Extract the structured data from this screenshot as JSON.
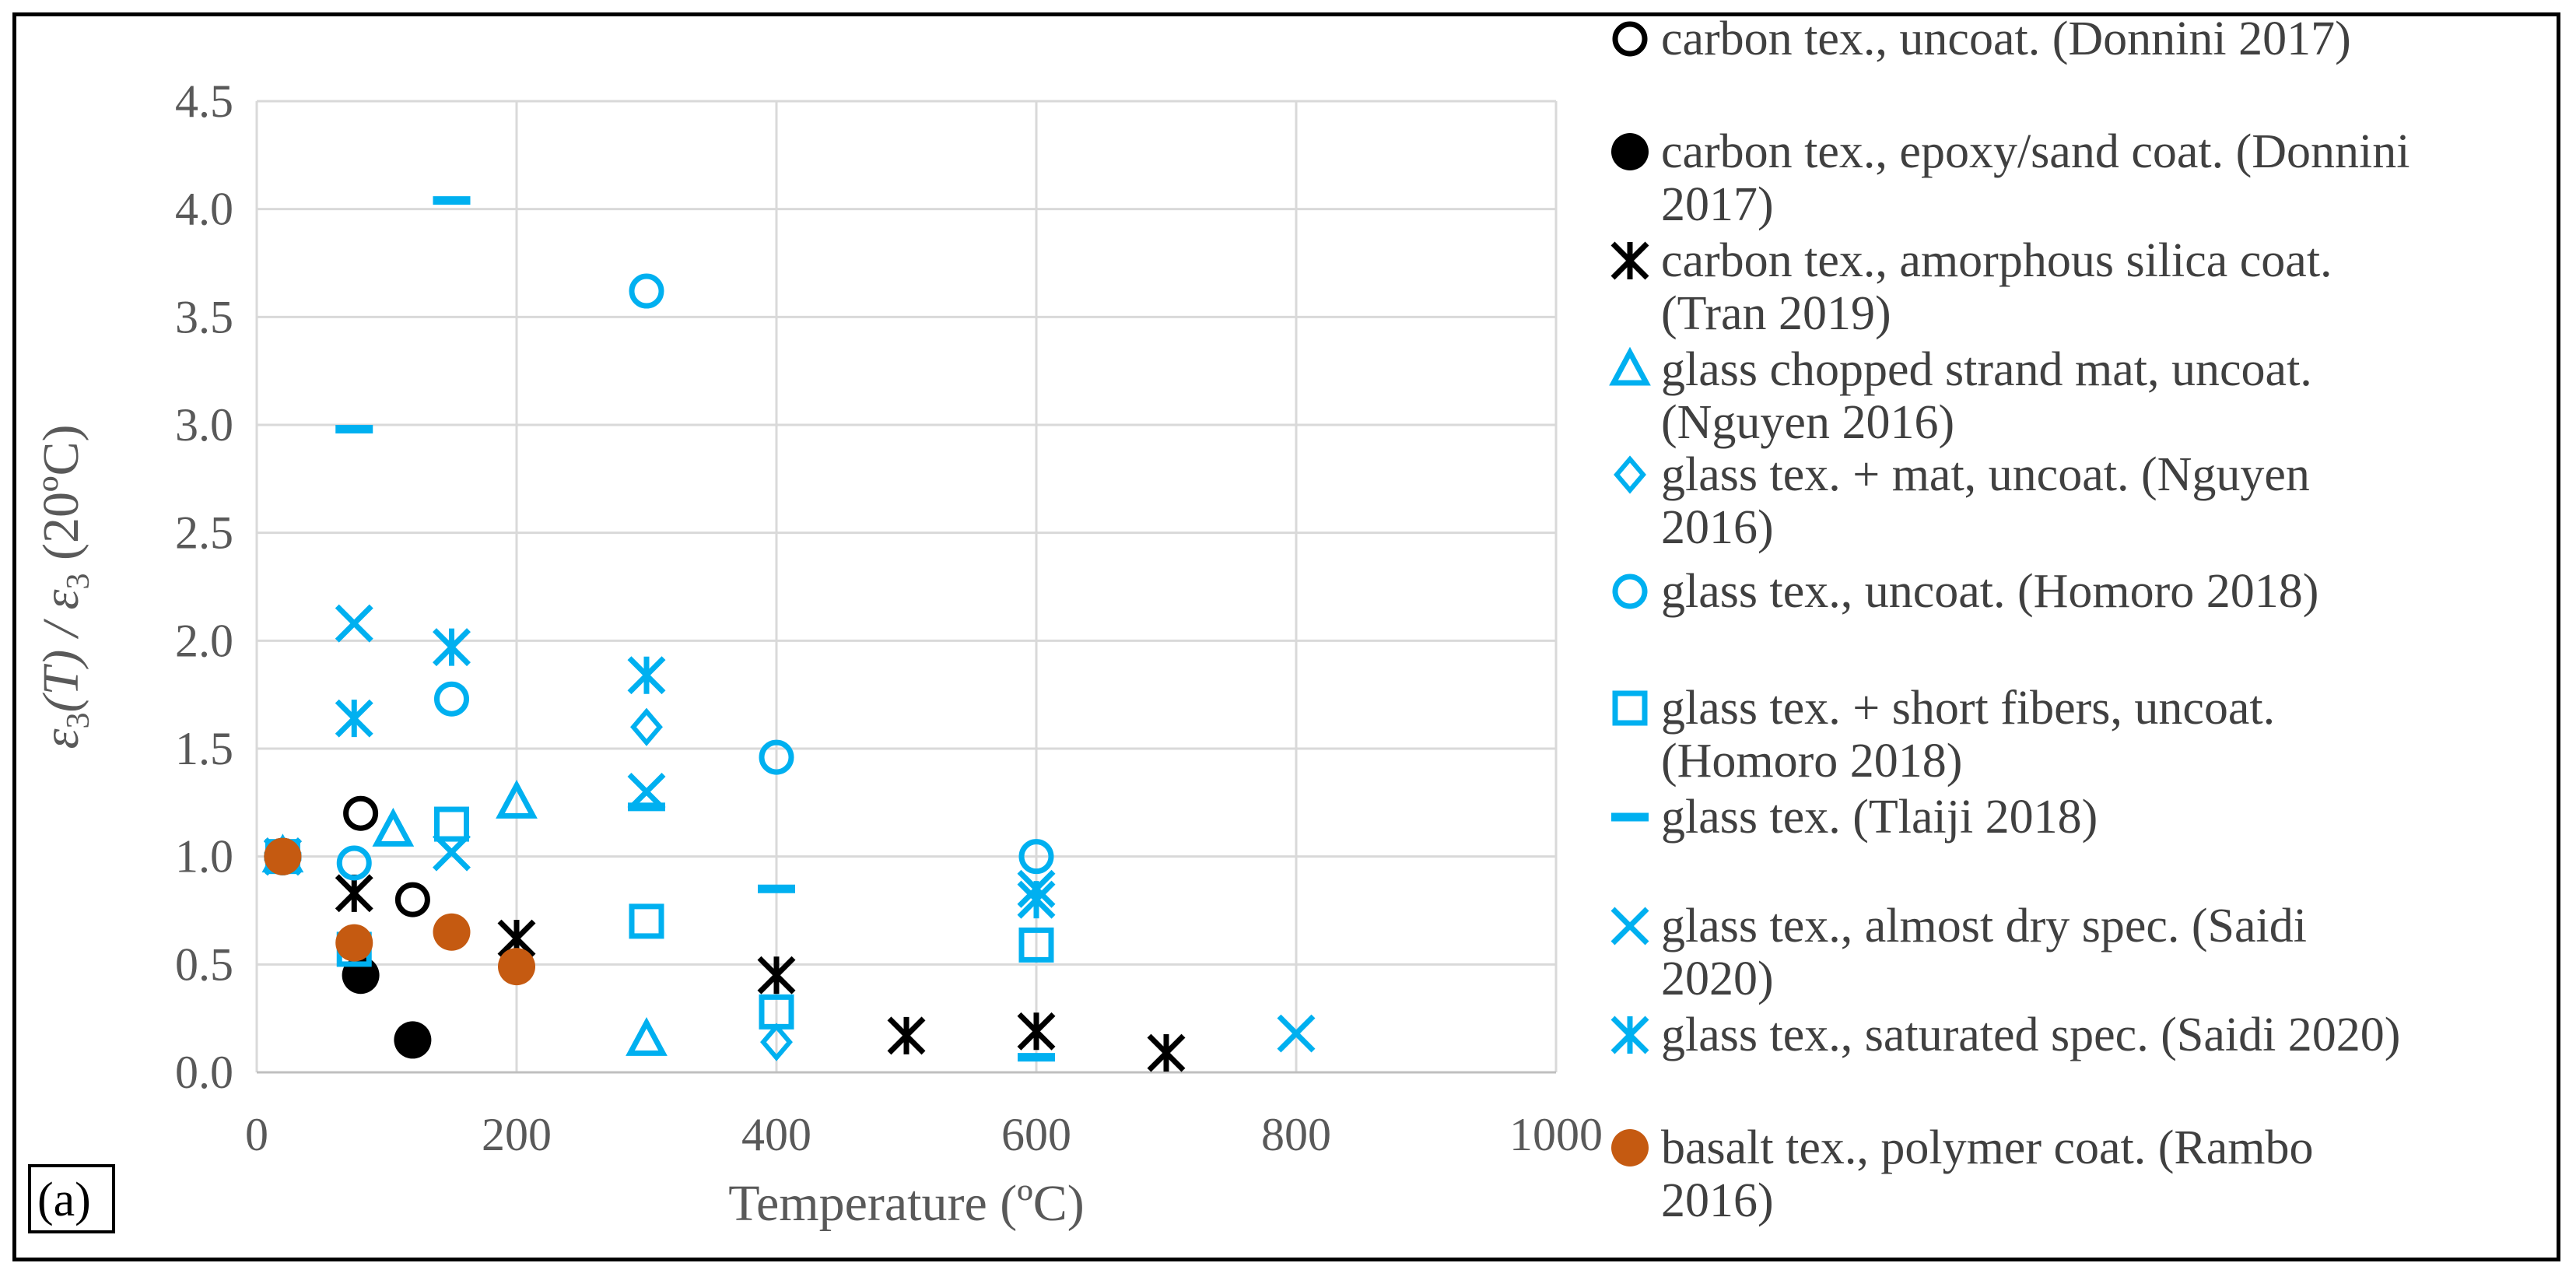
{
  "chart_data": {
    "type": "scatter",
    "panel_label": "(a)",
    "xlabel": "Temperature (ºC)",
    "ylabel_parts": [
      "ε",
      "3",
      "(T) / ",
      "ε",
      "3",
      " (20ºC)"
    ],
    "xlim": [
      0,
      1000
    ],
    "ylim": [
      0,
      4.5
    ],
    "x_ticks": [
      "0",
      "200",
      "400",
      "600",
      "800",
      "1000"
    ],
    "y_ticks": [
      "0.0",
      "0.5",
      "1.0",
      "1.5",
      "2.0",
      "2.5",
      "3.0",
      "3.5",
      "4.0",
      "4.5"
    ],
    "grid": true,
    "legend_position": "right",
    "colors": {
      "black": "#000000",
      "blue": "#00B0F0",
      "brown": "#C55A11",
      "grid": "#D9D9D9",
      "axis": "#BFBFBF"
    },
    "series": [
      {
        "name": "carbon tex., uncoat. (Donnini 2017)",
        "legend_lines": [
          "carbon tex., uncoat. (Donnini 2017)"
        ],
        "marker": "circle-open",
        "color": "#000000",
        "points": [
          [
            20,
            1.0
          ],
          [
            80,
            1.2
          ],
          [
            120,
            0.8
          ]
        ]
      },
      {
        "name": "carbon tex., epoxy/sand coat. (Donnini 2017)",
        "legend_lines": [
          "carbon tex., epoxy/sand coat. (Donnini",
          "2017)"
        ],
        "marker": "circle-filled",
        "color": "#000000",
        "points": [
          [
            20,
            1.0
          ],
          [
            80,
            0.45
          ],
          [
            120,
            0.15
          ]
        ]
      },
      {
        "name": "carbon tex., amorphous silica coat. (Tran 2019)",
        "legend_lines": [
          "carbon tex., amorphous silica coat.",
          "(Tran 2019)"
        ],
        "marker": "star",
        "color": "#000000",
        "points": [
          [
            20,
            1.0
          ],
          [
            75,
            0.83
          ],
          [
            200,
            0.62
          ],
          [
            400,
            0.45
          ],
          [
            500,
            0.17
          ],
          [
            600,
            0.19
          ],
          [
            700,
            0.09
          ]
        ]
      },
      {
        "name": "glass chopped strand mat, uncoat. (Nguyen 2016)",
        "legend_lines": [
          "glass chopped strand mat, uncoat.",
          "(Nguyen 2016)"
        ],
        "marker": "triangle-open",
        "color": "#00B0F0",
        "points": [
          [
            20,
            1.0
          ],
          [
            105,
            1.12
          ],
          [
            200,
            1.25
          ],
          [
            300,
            0.15
          ]
        ]
      },
      {
        "name": "glass tex. + mat, uncoat. (Nguyen 2016)",
        "legend_lines": [
          "glass tex. + mat, uncoat. (Nguyen",
          "2016)"
        ],
        "marker": "diamond-open",
        "color": "#00B0F0",
        "points": [
          [
            20,
            1.0
          ],
          [
            300,
            1.6
          ],
          [
            400,
            0.14
          ]
        ]
      },
      {
        "name": "glass tex., uncoat. (Homoro 2018)",
        "legend_lines": [
          "glass tex., uncoat. (Homoro 2018)"
        ],
        "marker": "circle-open",
        "color": "#00B0F0",
        "points": [
          [
            20,
            1.0
          ],
          [
            75,
            0.97
          ],
          [
            150,
            1.73
          ],
          [
            300,
            3.62
          ],
          [
            400,
            1.46
          ],
          [
            600,
            1.0
          ]
        ]
      },
      {
        "name": "glass tex. + short fibers, uncoat. (Homoro 2018)",
        "legend_lines": [
          "glass tex. + short fibers, uncoat.",
          "(Homoro 2018)"
        ],
        "marker": "square-open",
        "color": "#00B0F0",
        "points": [
          [
            20,
            1.0
          ],
          [
            75,
            0.57
          ],
          [
            150,
            1.15
          ],
          [
            300,
            0.7
          ],
          [
            400,
            0.28
          ],
          [
            600,
            0.59
          ]
        ]
      },
      {
        "name": "glass tex. (Tlaiji 2018)",
        "legend_lines": [
          "glass tex. (Tlaiji 2018)"
        ],
        "marker": "dash",
        "color": "#00B0F0",
        "points": [
          [
            20,
            1.0
          ],
          [
            75,
            2.98
          ],
          [
            150,
            4.04
          ],
          [
            300,
            1.23
          ],
          [
            400,
            0.85
          ],
          [
            600,
            0.07
          ]
        ]
      },
      {
        "name": "glass tex., almost dry spec. (Saidi 2020)",
        "legend_lines": [
          "glass tex., almost dry spec. (Saidi",
          "2020)"
        ],
        "marker": "x",
        "color": "#00B0F0",
        "points": [
          [
            20,
            1.0
          ],
          [
            75,
            2.08
          ],
          [
            150,
            1.02
          ],
          [
            300,
            1.3
          ],
          [
            600,
            0.85
          ],
          [
            800,
            0.18
          ]
        ]
      },
      {
        "name": "glass tex., saturated spec. (Saidi 2020)",
        "legend_lines": [
          "glass tex., saturated spec. (Saidi 2020)"
        ],
        "marker": "star",
        "color": "#00B0F0",
        "points": [
          [
            20,
            1.0
          ],
          [
            75,
            1.64
          ],
          [
            150,
            1.97
          ],
          [
            300,
            1.84
          ],
          [
            600,
            0.8
          ]
        ]
      },
      {
        "name": "basalt tex., polymer coat. (Rambo 2016)",
        "legend_lines": [
          "basalt tex., polymer coat. (Rambo",
          "2016)"
        ],
        "marker": "circle-filled",
        "color": "#C55A11",
        "points": [
          [
            20,
            1.0
          ],
          [
            75,
            0.6
          ],
          [
            150,
            0.65
          ],
          [
            200,
            0.49
          ]
        ]
      }
    ]
  }
}
